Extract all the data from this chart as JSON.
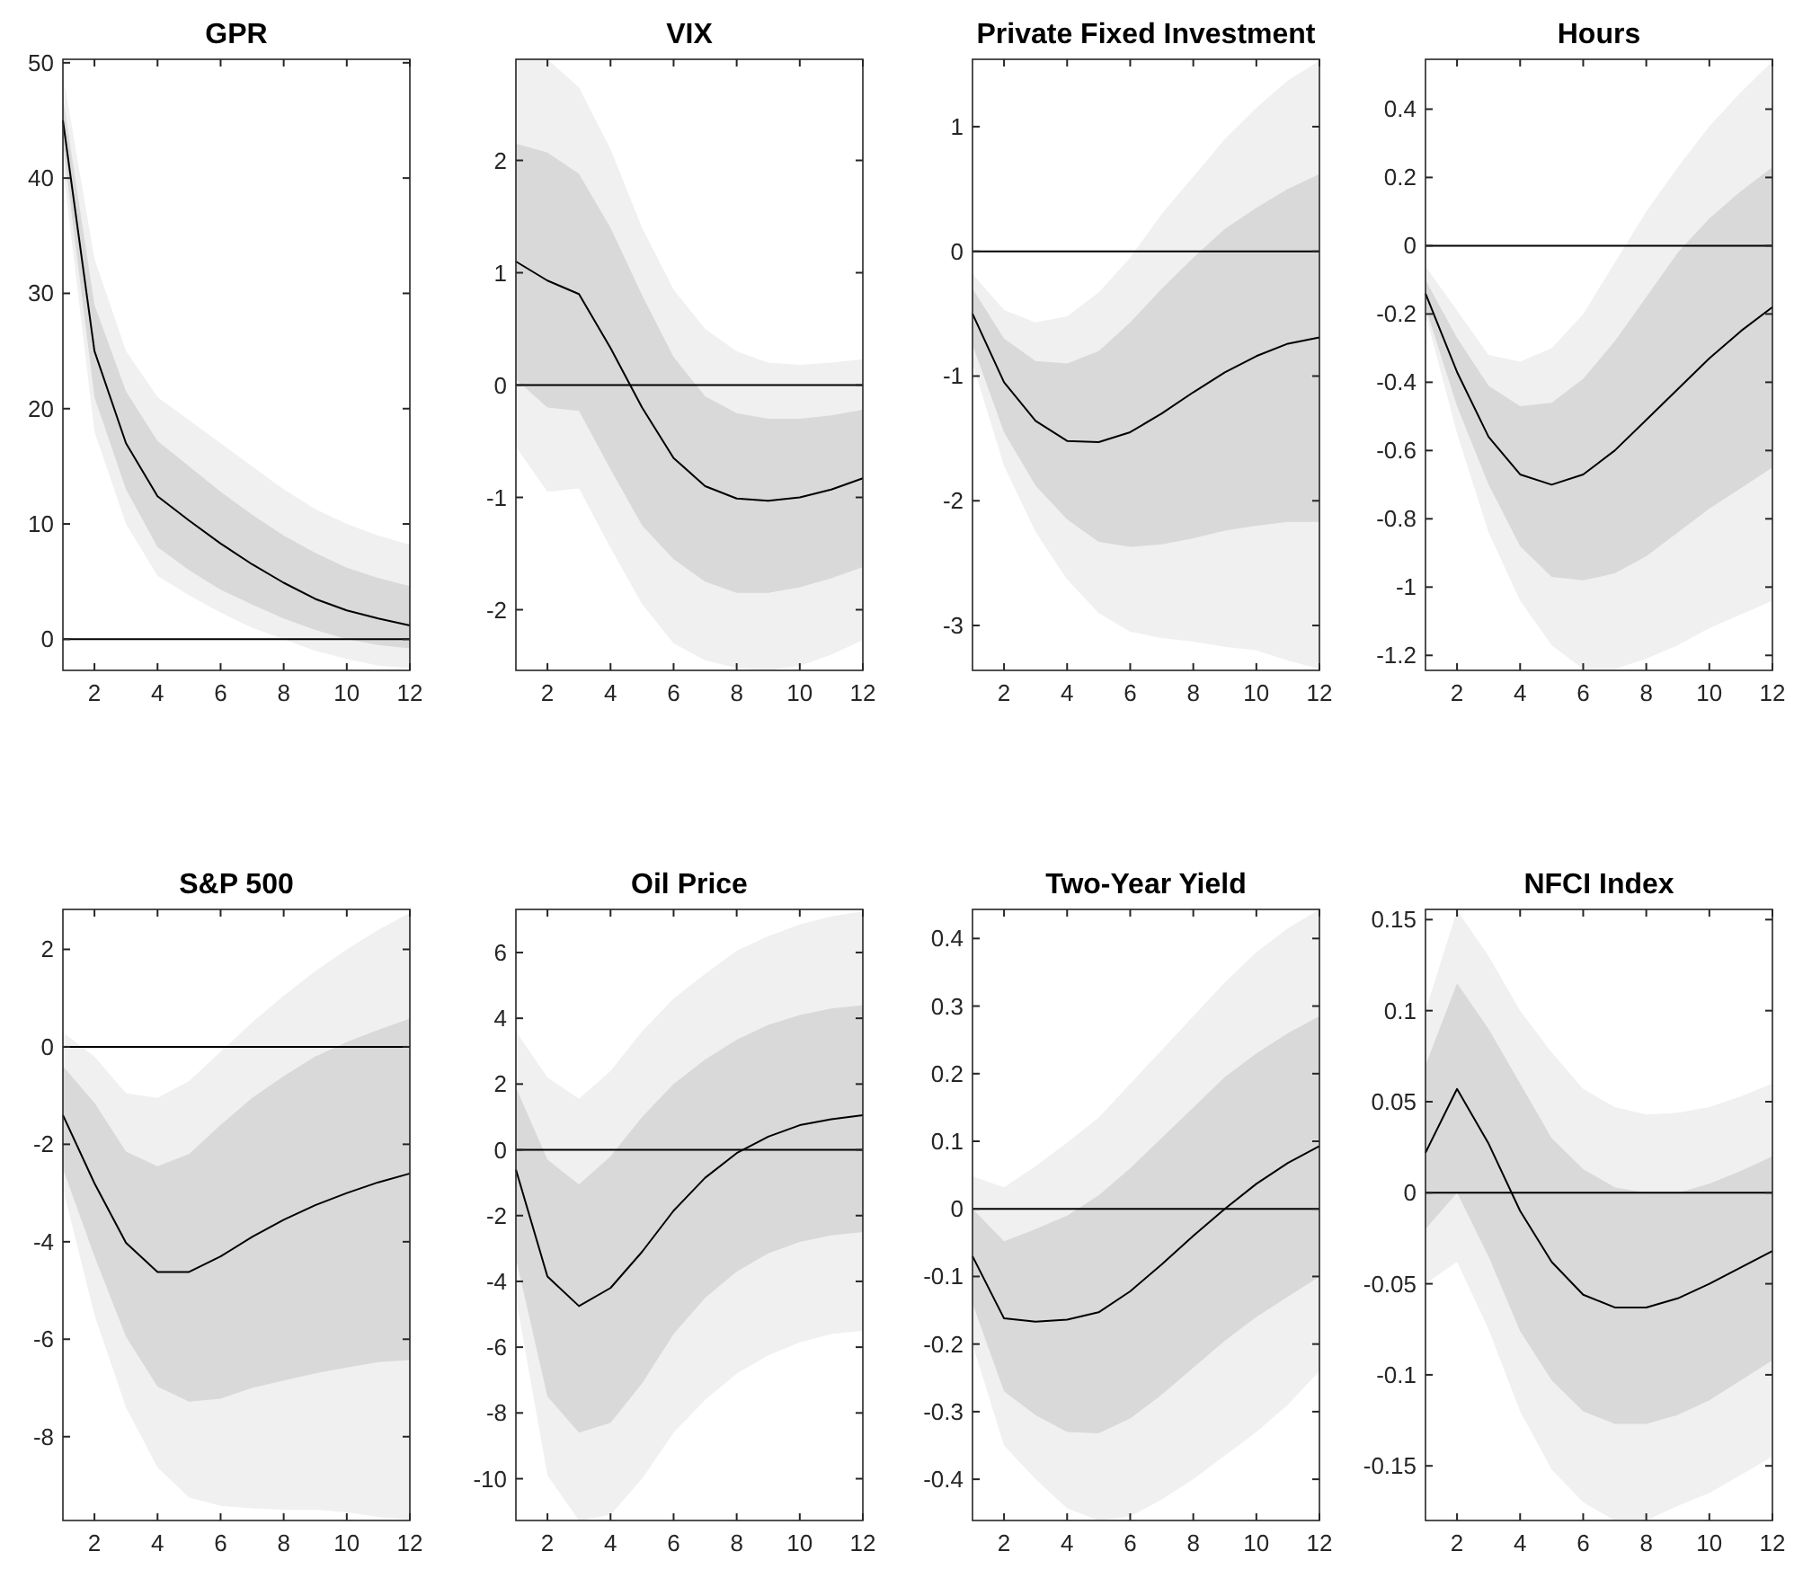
{
  "chart_data": [
    {
      "type": "line",
      "title": "GPR",
      "x": [
        1,
        2,
        3,
        4,
        5,
        6,
        7,
        8,
        9,
        10,
        11,
        12
      ],
      "xlim": [
        1,
        12
      ],
      "xticks": [
        2,
        4,
        6,
        8,
        10,
        12
      ],
      "ylim": [
        -2.7,
        50.3
      ],
      "yticks": [
        0,
        10,
        20,
        30,
        40,
        50
      ],
      "grid": false,
      "ref_lines": [
        {
          "axis": "y",
          "value": 0,
          "color": "#000000"
        }
      ],
      "series": [
        {
          "color": "#f0f0f0",
          "values": [
            null,
            null,
            null,
            null,
            null,
            null,
            null,
            null,
            null,
            null,
            null,
            null
          ],
          "lower": [
            41,
            18,
            10,
            5.5,
            3.8,
            2.3,
            1,
            0,
            -1,
            -1.7,
            -2.3,
            -2.5
          ],
          "upper": [
            49,
            33,
            25,
            21,
            19,
            17,
            15,
            13,
            11.3,
            10,
            9,
            8.2
          ]
        },
        {
          "color": "#d9d9d9",
          "values": [
            null,
            null,
            null,
            null,
            null,
            null,
            null,
            null,
            null,
            null,
            null,
            null
          ],
          "lower": [
            43,
            21,
            13,
            8,
            6,
            4.3,
            3,
            1.8,
            0.8,
            0,
            -0.5,
            -0.8
          ],
          "upper": [
            47,
            29,
            21.5,
            17.2,
            15,
            12.8,
            10.8,
            9,
            7.5,
            6.2,
            5.3,
            4.6
          ]
        },
        {
          "color": "#000000",
          "values": [
            45,
            25,
            17,
            12.4,
            10.3,
            8.3,
            6.5,
            4.9,
            3.5,
            2.5,
            1.8,
            1.2
          ]
        }
      ]
    },
    {
      "type": "line",
      "title": "VIX",
      "x": [
        1,
        2,
        3,
        4,
        5,
        6,
        7,
        8,
        9,
        10,
        11,
        12
      ],
      "xlim": [
        1,
        12
      ],
      "xticks": [
        2,
        4,
        6,
        8,
        10,
        12
      ],
      "ylim": [
        -2.54,
        2.9
      ],
      "yticks": [
        -2,
        -1,
        0,
        1,
        2
      ],
      "grid": false,
      "ref_lines": [
        {
          "axis": "y",
          "value": 0,
          "color": "#000000"
        }
      ],
      "series": [
        {
          "color": "#f0f0f0",
          "values": [
            null,
            null,
            null,
            null,
            null,
            null,
            null,
            null,
            null,
            null,
            null,
            null
          ],
          "lower": [
            -0.55,
            -0.95,
            -0.92,
            -1.45,
            -1.95,
            -2.3,
            -2.45,
            -2.52,
            -2.54,
            -2.5,
            -2.4,
            -2.27
          ],
          "upper": [
            2.9,
            2.9,
            2.65,
            2.1,
            1.4,
            0.85,
            0.5,
            0.3,
            0.2,
            0.18,
            0.2,
            0.23
          ]
        },
        {
          "color": "#d9d9d9",
          "values": [
            null,
            null,
            null,
            null,
            null,
            null,
            null,
            null,
            null,
            null,
            null,
            null
          ],
          "lower": [
            0.05,
            -0.2,
            -0.23,
            -0.75,
            -1.25,
            -1.55,
            -1.75,
            -1.85,
            -1.85,
            -1.8,
            -1.72,
            -1.62
          ],
          "upper": [
            2.15,
            2.07,
            1.88,
            1.4,
            0.8,
            0.25,
            -0.1,
            -0.25,
            -0.3,
            -0.3,
            -0.27,
            -0.22
          ]
        },
        {
          "color": "#000000",
          "values": [
            1.1,
            0.93,
            0.81,
            0.33,
            -0.2,
            -0.65,
            -0.9,
            -1.01,
            -1.03,
            -1.0,
            -0.93,
            -0.83
          ]
        }
      ]
    },
    {
      "type": "line",
      "title": "Private Fixed Investment",
      "x": [
        1,
        2,
        3,
        4,
        5,
        6,
        7,
        8,
        9,
        10,
        11,
        12
      ],
      "xlim": [
        1,
        12
      ],
      "xticks": [
        2,
        4,
        6,
        8,
        10,
        12
      ],
      "ylim": [
        -3.36,
        1.54
      ],
      "yticks": [
        -3,
        -2,
        -1,
        0,
        1
      ],
      "grid": false,
      "ref_lines": [
        {
          "axis": "y",
          "value": 0,
          "color": "#000000"
        }
      ],
      "series": [
        {
          "color": "#f0f0f0",
          "values": [
            null,
            null,
            null,
            null,
            null,
            null,
            null,
            null,
            null,
            null,
            null,
            null
          ],
          "lower": [
            -0.9,
            -1.72,
            -2.25,
            -2.63,
            -2.9,
            -3.05,
            -3.1,
            -3.13,
            -3.17,
            -3.2,
            -3.28,
            -3.35
          ],
          "upper": [
            -0.18,
            -0.47,
            -0.57,
            -0.52,
            -0.33,
            -0.05,
            0.3,
            0.6,
            0.9,
            1.15,
            1.37,
            1.53
          ]
        },
        {
          "color": "#d9d9d9",
          "values": [
            null,
            null,
            null,
            null,
            null,
            null,
            null,
            null,
            null,
            null,
            null,
            null
          ],
          "lower": [
            -0.75,
            -1.45,
            -1.88,
            -2.15,
            -2.33,
            -2.37,
            -2.35,
            -2.3,
            -2.24,
            -2.2,
            -2.17,
            -2.17
          ],
          "upper": [
            -0.3,
            -0.7,
            -0.88,
            -0.9,
            -0.8,
            -0.57,
            -0.3,
            -0.05,
            0.18,
            0.35,
            0.5,
            0.62
          ]
        },
        {
          "color": "#000000",
          "values": [
            -0.5,
            -1.05,
            -1.36,
            -1.52,
            -1.53,
            -1.45,
            -1.3,
            -1.13,
            -0.97,
            -0.84,
            -0.74,
            -0.69
          ]
        }
      ]
    },
    {
      "type": "line",
      "title": "Hours",
      "x": [
        1,
        2,
        3,
        4,
        5,
        6,
        7,
        8,
        9,
        10,
        11,
        12
      ],
      "xlim": [
        1,
        12
      ],
      "xticks": [
        2,
        4,
        6,
        8,
        10,
        12
      ],
      "ylim": [
        -1.244,
        0.546
      ],
      "yticks": [
        -1.2,
        -1,
        -0.8,
        -0.6,
        -0.4,
        -0.2,
        0,
        0.2,
        0.4
      ],
      "grid": false,
      "ref_lines": [
        {
          "axis": "y",
          "value": 0,
          "color": "#000000"
        }
      ],
      "series": [
        {
          "color": "#f0f0f0",
          "values": [
            null,
            null,
            null,
            null,
            null,
            null,
            null,
            null,
            null,
            null,
            null,
            null
          ],
          "lower": [
            -0.2,
            -0.55,
            -0.84,
            -1.04,
            -1.17,
            -1.24,
            -1.24,
            -1.21,
            -1.17,
            -1.12,
            -1.08,
            -1.04
          ],
          "upper": [
            -0.06,
            -0.19,
            -0.32,
            -0.34,
            -0.3,
            -0.2,
            -0.05,
            0.1,
            0.23,
            0.35,
            0.45,
            0.54
          ]
        },
        {
          "color": "#d9d9d9",
          "values": [
            null,
            null,
            null,
            null,
            null,
            null,
            null,
            null,
            null,
            null,
            null,
            null
          ],
          "lower": [
            -0.18,
            -0.47,
            -0.7,
            -0.88,
            -0.97,
            -0.98,
            -0.96,
            -0.91,
            -0.84,
            -0.77,
            -0.71,
            -0.65
          ],
          "upper": [
            -0.1,
            -0.27,
            -0.41,
            -0.47,
            -0.46,
            -0.39,
            -0.28,
            -0.15,
            -0.02,
            0.08,
            0.16,
            0.23
          ]
        },
        {
          "color": "#000000",
          "values": [
            -0.14,
            -0.37,
            -0.56,
            -0.67,
            -0.7,
            -0.67,
            -0.6,
            -0.51,
            -0.42,
            -0.33,
            -0.25,
            -0.18
          ]
        }
      ]
    },
    {
      "type": "line",
      "title": "S&P 500",
      "x": [
        1,
        2,
        3,
        4,
        5,
        6,
        7,
        8,
        9,
        10,
        11,
        12
      ],
      "xlim": [
        1,
        12
      ],
      "xticks": [
        2,
        4,
        6,
        8,
        10,
        12
      ],
      "ylim": [
        -9.72,
        2.82
      ],
      "yticks": [
        -8,
        -6,
        -4,
        -2,
        0,
        2
      ],
      "grid": false,
      "ref_lines": [
        {
          "axis": "y",
          "value": 0,
          "color": "#000000"
        }
      ],
      "series": [
        {
          "color": "#f0f0f0",
          "values": [
            null,
            null,
            null,
            null,
            null,
            null,
            null,
            null,
            null,
            null,
            null,
            null
          ],
          "lower": [
            -2.9,
            -5.5,
            -7.4,
            -8.63,
            -9.25,
            -9.42,
            -9.47,
            -9.5,
            -9.5,
            -9.55,
            -9.65,
            -9.7
          ],
          "upper": [
            0.3,
            -0.2,
            -0.95,
            -1.05,
            -0.7,
            -0.1,
            0.5,
            1.05,
            1.55,
            2.0,
            2.4,
            2.75
          ]
        },
        {
          "color": "#d9d9d9",
          "values": [
            null,
            null,
            null,
            null,
            null,
            null,
            null,
            null,
            null,
            null,
            null,
            null
          ],
          "lower": [
            -2.5,
            -4.3,
            -5.95,
            -6.97,
            -7.28,
            -7.22,
            -7.0,
            -6.85,
            -6.7,
            -6.58,
            -6.47,
            -6.43
          ],
          "upper": [
            -0.4,
            -1.15,
            -2.15,
            -2.45,
            -2.2,
            -1.6,
            -1.05,
            -0.6,
            -0.2,
            0.1,
            0.35,
            0.58
          ]
        },
        {
          "color": "#000000",
          "values": [
            -1.4,
            -2.8,
            -4.02,
            -4.62,
            -4.62,
            -4.3,
            -3.9,
            -3.55,
            -3.25,
            -3.0,
            -2.78,
            -2.6
          ]
        }
      ]
    },
    {
      "type": "line",
      "title": "Oil Price",
      "x": [
        1,
        2,
        3,
        4,
        5,
        6,
        7,
        8,
        9,
        10,
        11,
        12
      ],
      "xlim": [
        1,
        12
      ],
      "xticks": [
        2,
        4,
        6,
        8,
        10,
        12
      ],
      "ylim": [
        -11.27,
        7.31
      ],
      "yticks": [
        -10,
        -8,
        -6,
        -4,
        -2,
        0,
        2,
        4,
        6
      ],
      "grid": false,
      "ref_lines": [
        {
          "axis": "y",
          "value": 0,
          "color": "#000000"
        }
      ],
      "series": [
        {
          "color": "#f0f0f0",
          "values": [
            null,
            null,
            null,
            null,
            null,
            null,
            null,
            null,
            null,
            null,
            null,
            null
          ],
          "lower": [
            -4.5,
            -9.9,
            -11.27,
            -11.1,
            -10.0,
            -8.6,
            -7.6,
            -6.8,
            -6.25,
            -5.85,
            -5.6,
            -5.5
          ],
          "upper": [
            3.6,
            2.2,
            1.55,
            2.4,
            3.6,
            4.6,
            5.35,
            6.05,
            6.5,
            6.85,
            7.1,
            7.25
          ]
        },
        {
          "color": "#d9d9d9",
          "values": [
            null,
            null,
            null,
            null,
            null,
            null,
            null,
            null,
            null,
            null,
            null,
            null
          ],
          "lower": [
            -3.3,
            -7.5,
            -8.6,
            -8.3,
            -7.1,
            -5.6,
            -4.5,
            -3.7,
            -3.15,
            -2.8,
            -2.6,
            -2.5
          ],
          "upper": [
            1.9,
            -0.3,
            -1.05,
            -0.2,
            1.0,
            2.0,
            2.75,
            3.35,
            3.8,
            4.1,
            4.3,
            4.4
          ]
        },
        {
          "color": "#000000",
          "values": [
            -0.6,
            -3.85,
            -4.75,
            -4.2,
            -3.1,
            -1.85,
            -0.85,
            -0.1,
            0.4,
            0.75,
            0.93,
            1.05
          ]
        }
      ]
    },
    {
      "type": "line",
      "title": "Two-Year Yield",
      "x": [
        1,
        2,
        3,
        4,
        5,
        6,
        7,
        8,
        9,
        10,
        11,
        12
      ],
      "xlim": [
        1,
        12
      ],
      "xticks": [
        2,
        4,
        6,
        8,
        10,
        12
      ],
      "ylim": [
        -0.461,
        0.443
      ],
      "yticks": [
        -0.4,
        -0.3,
        -0.2,
        -0.1,
        0,
        0.1,
        0.2,
        0.3,
        0.4
      ],
      "grid": false,
      "ref_lines": [
        {
          "axis": "y",
          "value": 0,
          "color": "#000000"
        }
      ],
      "series": [
        {
          "color": "#f0f0f0",
          "values": [
            null,
            null,
            null,
            null,
            null,
            null,
            null,
            null,
            null,
            null,
            null,
            null
          ],
          "lower": [
            -0.2,
            -0.35,
            -0.4,
            -0.443,
            -0.461,
            -0.455,
            -0.43,
            -0.4,
            -0.365,
            -0.33,
            -0.29,
            -0.24
          ],
          "upper": [
            0.048,
            0.032,
            0.063,
            0.098,
            0.135,
            0.185,
            0.235,
            0.285,
            0.335,
            0.38,
            0.415,
            0.443
          ]
        },
        {
          "color": "#d9d9d9",
          "values": [
            null,
            null,
            null,
            null,
            null,
            null,
            null,
            null,
            null,
            null,
            null,
            null
          ],
          "lower": [
            -0.14,
            -0.27,
            -0.305,
            -0.33,
            -0.332,
            -0.31,
            -0.275,
            -0.235,
            -0.195,
            -0.16,
            -0.13,
            -0.1
          ],
          "upper": [
            0.0,
            -0.048,
            -0.03,
            -0.01,
            0.02,
            0.06,
            0.105,
            0.15,
            0.195,
            0.23,
            0.26,
            0.285
          ]
        },
        {
          "color": "#000000",
          "values": [
            -0.07,
            -0.162,
            -0.167,
            -0.164,
            -0.153,
            -0.122,
            -0.082,
            -0.04,
            0.0,
            0.037,
            0.068,
            0.093
          ]
        }
      ]
    },
    {
      "type": "line",
      "title": "NFCI Index",
      "x": [
        1,
        2,
        3,
        4,
        5,
        6,
        7,
        8,
        9,
        10,
        11,
        12
      ],
      "xlim": [
        1,
        12
      ],
      "xticks": [
        2,
        4,
        6,
        8,
        10,
        12
      ],
      "ylim": [
        -0.18,
        0.1556
      ],
      "yticks": [
        -0.15,
        -0.1,
        -0.05,
        0,
        0.05,
        0.1,
        0.15
      ],
      "grid": false,
      "ref_lines": [
        {
          "axis": "y",
          "value": 0,
          "color": "#000000"
        }
      ],
      "series": [
        {
          "color": "#f0f0f0",
          "values": [
            null,
            null,
            null,
            null,
            null,
            null,
            null,
            null,
            null,
            null,
            null,
            null
          ],
          "lower": [
            -0.05,
            -0.038,
            -0.075,
            -0.12,
            -0.152,
            -0.17,
            -0.18,
            -0.18,
            -0.172,
            -0.165,
            -0.155,
            -0.145
          ],
          "upper": [
            0.1,
            0.155,
            0.13,
            0.1,
            0.077,
            0.057,
            0.047,
            0.043,
            0.044,
            0.047,
            0.053,
            0.06
          ]
        },
        {
          "color": "#d9d9d9",
          "values": [
            null,
            null,
            null,
            null,
            null,
            null,
            null,
            null,
            null,
            null,
            null,
            null
          ],
          "lower": [
            -0.02,
            0.0,
            -0.035,
            -0.076,
            -0.103,
            -0.12,
            -0.127,
            -0.127,
            -0.122,
            -0.114,
            -0.103,
            -0.092
          ],
          "upper": [
            0.07,
            0.115,
            0.09,
            0.06,
            0.03,
            0.013,
            0.003,
            0.0,
            0.0,
            0.005,
            0.012,
            0.02
          ]
        },
        {
          "color": "#000000",
          "values": [
            0.022,
            0.057,
            0.027,
            -0.01,
            -0.038,
            -0.056,
            -0.063,
            -0.063,
            -0.058,
            -0.05,
            -0.041,
            -0.032
          ]
        }
      ]
    }
  ]
}
